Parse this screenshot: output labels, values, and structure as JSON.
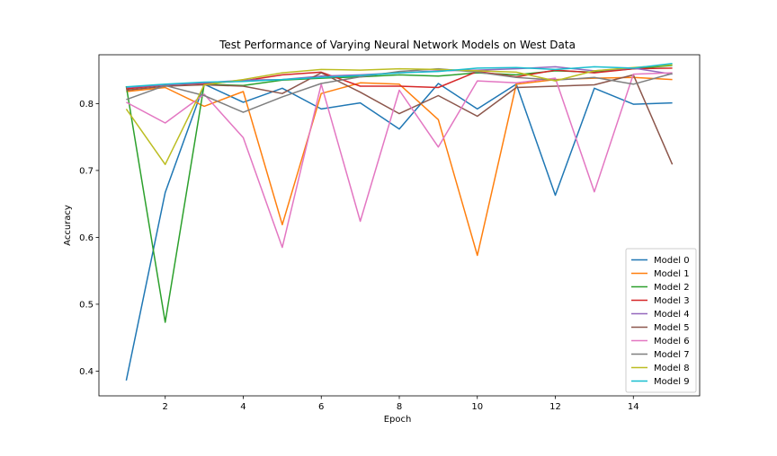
{
  "chart_data": {
    "type": "line",
    "title": "Test Performance of Varying Neural Network Models on West Data",
    "xlabel": "Epoch",
    "ylabel": "Accuracy",
    "xlim": [
      0.3,
      15.7
    ],
    "ylim": [
      0.363,
      0.873
    ],
    "xticks": [
      2,
      4,
      6,
      8,
      10,
      12,
      14
    ],
    "yticks": [
      0.4,
      0.5,
      0.6,
      0.7,
      0.8
    ],
    "grid": false,
    "legend_position": "lower-right",
    "x": [
      1,
      2,
      3,
      4,
      5,
      6,
      7,
      8,
      9,
      10,
      11,
      12,
      13,
      14,
      15
    ],
    "series": [
      {
        "name": "Model 0",
        "color": "#1f77b4",
        "values": [
          0.386,
          0.667,
          0.829,
          0.802,
          0.823,
          0.792,
          0.801,
          0.762,
          0.83,
          0.792,
          0.829,
          0.663,
          0.823,
          0.799,
          0.801
        ]
      },
      {
        "name": "Model 1",
        "color": "#ff7f0e",
        "values": [
          0.818,
          0.824,
          0.796,
          0.818,
          0.619,
          0.815,
          0.831,
          0.829,
          0.776,
          0.573,
          0.829,
          0.836,
          0.838,
          0.839,
          0.836
        ]
      },
      {
        "name": "Model 2",
        "color": "#2ca02c",
        "values": [
          0.826,
          0.473,
          0.829,
          0.827,
          0.835,
          0.838,
          0.84,
          0.843,
          0.841,
          0.846,
          0.843,
          0.849,
          0.847,
          0.852,
          0.857
        ]
      },
      {
        "name": "Model 3",
        "color": "#d62728",
        "values": [
          0.822,
          0.828,
          0.83,
          0.834,
          0.843,
          0.847,
          0.826,
          0.826,
          0.824,
          0.848,
          0.84,
          0.85,
          0.846,
          0.852,
          0.853
        ]
      },
      {
        "name": "Model 4",
        "color": "#9467bd",
        "values": [
          0.824,
          0.828,
          0.831,
          0.835,
          0.836,
          0.841,
          0.843,
          0.846,
          0.849,
          0.85,
          0.852,
          0.855,
          0.849,
          0.853,
          0.844
        ]
      },
      {
        "name": "Model 5",
        "color": "#8c564b",
        "values": [
          0.82,
          0.826,
          0.828,
          0.826,
          0.815,
          0.846,
          0.817,
          0.785,
          0.812,
          0.781,
          0.824,
          0.826,
          0.828,
          0.843,
          0.709
        ]
      },
      {
        "name": "Model 6",
        "color": "#e377c2",
        "values": [
          0.802,
          0.771,
          0.814,
          0.749,
          0.585,
          0.829,
          0.624,
          0.82,
          0.735,
          0.834,
          0.831,
          0.838,
          0.668,
          0.844,
          0.846
        ]
      },
      {
        "name": "Model 7",
        "color": "#7f7f7f",
        "values": [
          0.806,
          0.827,
          0.812,
          0.787,
          0.81,
          0.83,
          0.84,
          0.848,
          0.852,
          0.847,
          0.839,
          0.835,
          0.839,
          0.829,
          0.845
        ]
      },
      {
        "name": "Model 8",
        "color": "#bcbd22",
        "values": [
          0.792,
          0.709,
          0.828,
          0.836,
          0.846,
          0.851,
          0.85,
          0.852,
          0.851,
          0.849,
          0.847,
          0.834,
          0.849,
          0.854,
          0.858
        ]
      },
      {
        "name": "Model 9",
        "color": "#17becf",
        "values": [
          0.825,
          0.829,
          0.832,
          0.833,
          0.836,
          0.839,
          0.842,
          0.846,
          0.848,
          0.853,
          0.854,
          0.851,
          0.855,
          0.853,
          0.86
        ]
      }
    ]
  }
}
